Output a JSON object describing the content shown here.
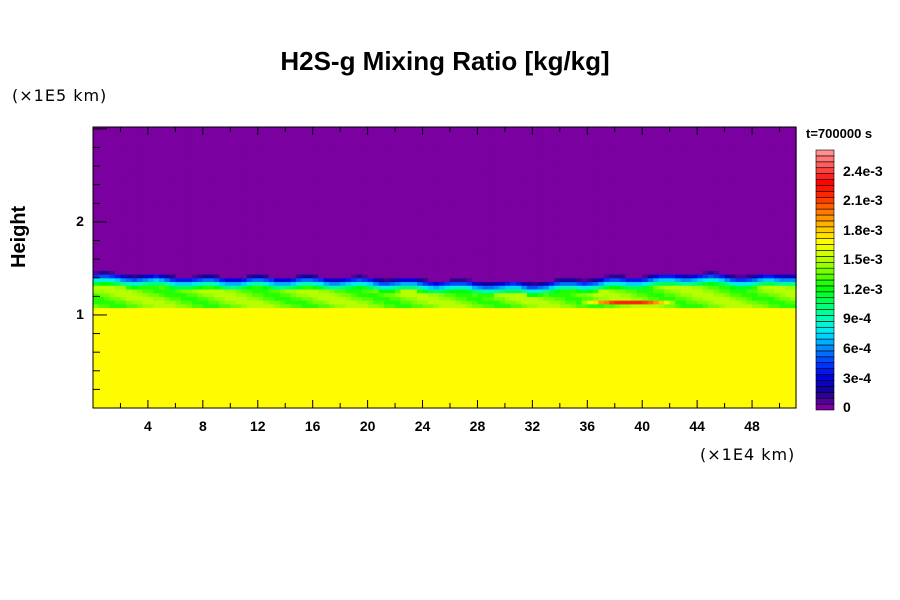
{
  "chart_data": {
    "type": "heatmap",
    "title": "H2S-g Mixing Ratio [kg/kg]",
    "xlabel": "",
    "ylabel": "Height",
    "x_unit": "(×1E4 km)",
    "y_unit": "(×1E5 km)",
    "xlim": [
      0,
      51.2
    ],
    "ylim": [
      0,
      3.02
    ],
    "x_ticks": [
      "4",
      "8",
      "12",
      "16",
      "20",
      "24",
      "28",
      "32",
      "36",
      "40",
      "44",
      "48"
    ],
    "y_ticks": [
      "1",
      "2"
    ],
    "time_label": "t=700000 s",
    "colorbar": {
      "min": 0,
      "max": 0.00264,
      "step": 6e-05,
      "tick_labels": [
        "0",
        "3e-4",
        "6e-4",
        "9e-4",
        "1.2e-3",
        "1.5e-3",
        "1.8e-3",
        "2.1e-3",
        "2.4e-3"
      ],
      "tick_values": [
        0,
        0.0003,
        0.0006,
        0.0009,
        0.0012,
        0.0015,
        0.0018,
        0.0021,
        0.0024
      ],
      "colormap": [
        "#7a00a0",
        "#1a0090",
        "#0000e0",
        "#0040ff",
        "#0090ff",
        "#00e8ff",
        "#00ffb0",
        "#00ff60",
        "#00ff00",
        "#70ff00",
        "#c0ff00",
        "#ffff00",
        "#ffc000",
        "#ff8000",
        "#ff3000",
        "#ff0000",
        "#ff5050",
        "#ff9090"
      ]
    },
    "field": {
      "lower_layer_value": 0.00174,
      "lower_layer_top": 1.08,
      "mixed_layer_value": 0.00142,
      "upper_value": 0,
      "interface_x": [
        0,
        4,
        8,
        12,
        16,
        20,
        24,
        28,
        32,
        36,
        40,
        44,
        48,
        51.2
      ],
      "interface_height": [
        1.46,
        1.44,
        1.42,
        1.42,
        1.42,
        1.41,
        1.39,
        1.37,
        1.36,
        1.4,
        1.43,
        1.46,
        1.43,
        1.46
      ],
      "hotspot": {
        "x": 39,
        "y": 1.14,
        "value": 0.0022
      }
    }
  }
}
